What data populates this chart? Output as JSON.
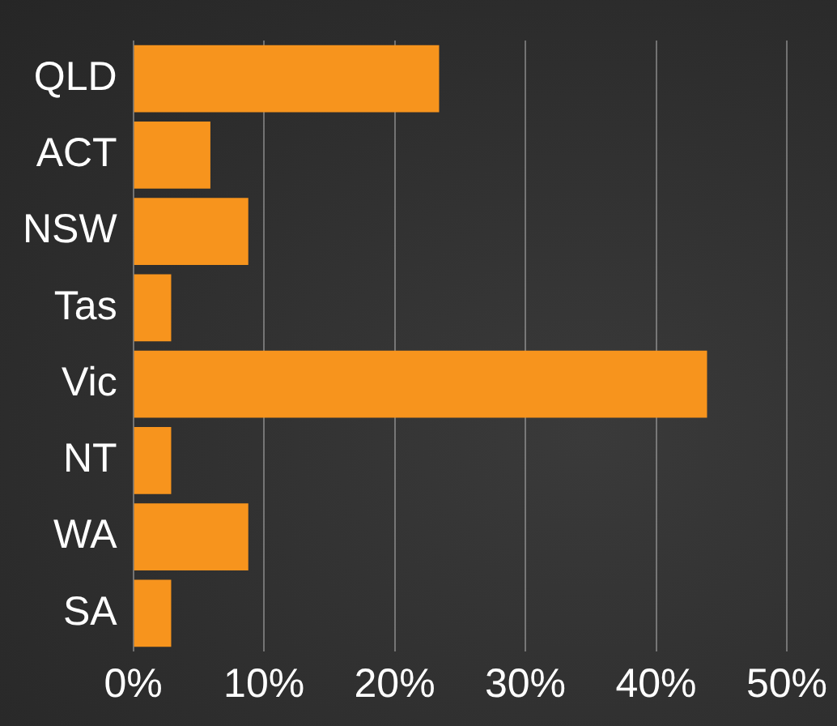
{
  "chart_data": {
    "type": "bar",
    "orientation": "horizontal",
    "categories": [
      "QLD",
      "ACT",
      "NSW",
      "Tas",
      "Vic",
      "NT",
      "WA",
      "SA"
    ],
    "values": [
      23.4,
      5.9,
      8.8,
      2.9,
      43.9,
      2.9,
      8.8,
      2.9
    ],
    "color": "#f7941d",
    "xlim": [
      0,
      50
    ],
    "xticks": [
      {
        "value": 0,
        "label": "0%"
      },
      {
        "value": 10,
        "label": "10%"
      },
      {
        "value": 20,
        "label": "20%"
      },
      {
        "value": 30,
        "label": "30%"
      },
      {
        "value": 40,
        "label": "40%"
      },
      {
        "value": 50,
        "label": "50%"
      }
    ],
    "grid": "x",
    "legend": false
  }
}
